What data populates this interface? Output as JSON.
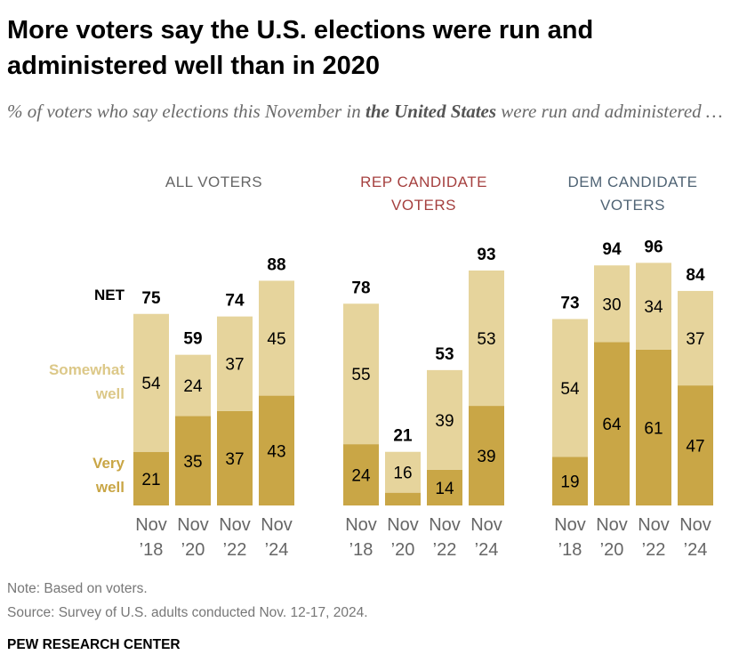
{
  "title": "More voters say the U.S. elections were run and administered well than in 2020",
  "subtitle": {
    "prefix": "% of voters who say elections this November in ",
    "emphasis": "the United States",
    "suffix": " were run and administered …"
  },
  "note": "Note: Based on voters.",
  "source": "Source: Survey of U.S. adults conducted Nov. 12-17, 2024.",
  "brand": "PEW RESEARCH CENTER",
  "colors": {
    "very_well": "#c9a646",
    "somewhat_well": "#e6d49c",
    "panel_all": "#666666",
    "panel_rep": "#a5403f",
    "panel_dem": "#4f6374",
    "legend_somewhat": "#dcc888",
    "legend_very": "#c9a646",
    "axis_text": "#666666"
  },
  "chart_data": {
    "type": "bar",
    "stacked": true,
    "legend": {
      "net": "NET",
      "somewhat": "Somewhat well",
      "very": "Very well"
    },
    "categories": [
      [
        "Nov",
        "’18"
      ],
      [
        "Nov",
        "’20"
      ],
      [
        "Nov",
        "’22"
      ],
      [
        "Nov",
        "’24"
      ]
    ],
    "panels": [
      {
        "name": "ALL VOTERS",
        "title_lines": [
          "ALL VOTERS"
        ],
        "net": [
          75,
          59,
          74,
          88
        ],
        "series": [
          {
            "name": "Very well",
            "values": [
              21,
              35,
              37,
              43
            ]
          },
          {
            "name": "Somewhat well",
            "values": [
              54,
              24,
              37,
              45
            ]
          }
        ]
      },
      {
        "name": "REP CANDIDATE VOTERS",
        "title_lines": [
          "REP CANDIDATE",
          "VOTERS"
        ],
        "net": [
          78,
          21,
          53,
          93
        ],
        "series": [
          {
            "name": "Very well",
            "values": [
              24,
              5,
              14,
              39
            ]
          },
          {
            "name": "Somewhat well",
            "values": [
              55,
              16,
              39,
              53
            ]
          }
        ]
      },
      {
        "name": "DEM CANDIDATE VOTERS",
        "title_lines": [
          "DEM CANDIDATE",
          "VOTERS"
        ],
        "net": [
          73,
          94,
          96,
          84
        ],
        "series": [
          {
            "name": "Very well",
            "values": [
              19,
              64,
              61,
              47
            ]
          },
          {
            "name": "Somewhat well",
            "values": [
              54,
              30,
              34,
              37
            ]
          }
        ]
      }
    ],
    "hidden_value_labels": [
      [
        1,
        1,
        "Very well"
      ]
    ],
    "ylim": [
      0,
      100
    ]
  }
}
